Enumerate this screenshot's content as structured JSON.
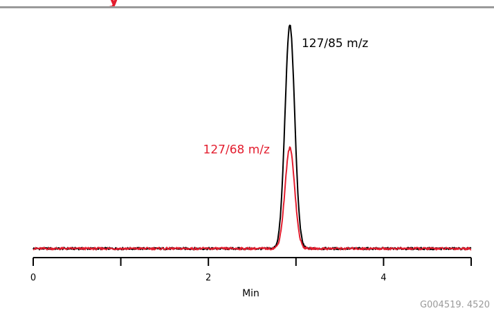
{
  "header": {
    "title_fragment": "y",
    "title_color": "#e31d2e",
    "rule_color": "#9a9a9a"
  },
  "chart_data": {
    "type": "line",
    "title": "",
    "xlabel": "Min",
    "ylabel": "",
    "xlim": [
      0,
      5
    ],
    "ylim": [
      0,
      100
    ],
    "x_ticks": [
      0,
      1,
      2,
      3,
      4,
      5
    ],
    "x_tick_labels": [
      "0",
      "",
      "2",
      "",
      "4",
      ""
    ],
    "grid": false,
    "legend": "none",
    "baseline": 0,
    "series": [
      {
        "name": "127/85 m/z",
        "color": "#000000",
        "label_position": "right of peak",
        "peak_x": 2.93,
        "peak_height": 100,
        "peak_width": 0.055,
        "x": [
          0,
          1,
          2,
          2.75,
          2.8,
          2.85,
          2.88,
          2.9,
          2.92,
          2.93,
          2.94,
          2.96,
          2.98,
          3.0,
          3.02,
          3.05,
          3.1,
          3.2,
          4,
          5
        ],
        "y": [
          0,
          0,
          0,
          0.5,
          3,
          24,
          62,
          88,
          98,
          100,
          99,
          94,
          60,
          24,
          6,
          2,
          0.5,
          0,
          0,
          0
        ]
      },
      {
        "name": "127/68 m/z",
        "color": "#e31d2e",
        "label_position": "left of peak",
        "peak_x": 2.93,
        "peak_height": 45,
        "peak_width": 0.055,
        "x": [
          0,
          1,
          2,
          2.75,
          2.8,
          2.85,
          2.88,
          2.9,
          2.92,
          2.93,
          2.94,
          2.96,
          2.98,
          3.0,
          3.02,
          3.05,
          3.1,
          3.2,
          4,
          5
        ],
        "y": [
          0,
          0,
          0,
          0.2,
          1.5,
          11,
          28,
          40,
          45,
          45,
          44,
          40,
          27,
          11,
          3,
          1,
          0.3,
          0,
          0,
          0
        ]
      }
    ]
  },
  "footer": {
    "figure_id": "G004519. 4520"
  }
}
